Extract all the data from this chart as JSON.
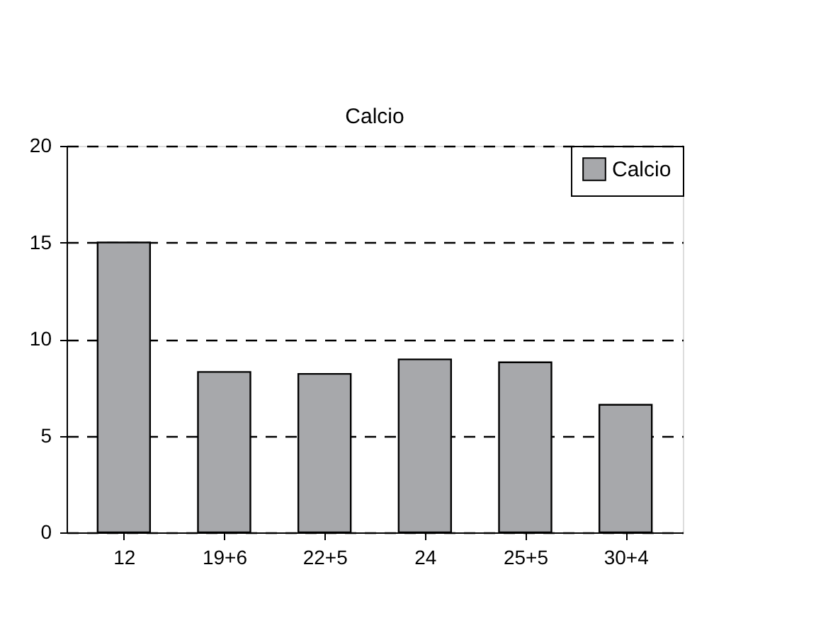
{
  "chart_data": {
    "type": "bar",
    "title": "Calcio",
    "categories": [
      "12",
      "19+6",
      "22+5",
      "24",
      "25+5",
      "30+4"
    ],
    "series": [
      {
        "name": "Calcio",
        "color": "#a7a8ab",
        "values": [
          15,
          8.3,
          8.2,
          8.95,
          8.8,
          6.6
        ]
      }
    ],
    "ylim": [
      0,
      20
    ],
    "yticks": [
      0,
      5,
      10,
      15,
      20
    ],
    "grid": "y",
    "legend": "top right"
  }
}
